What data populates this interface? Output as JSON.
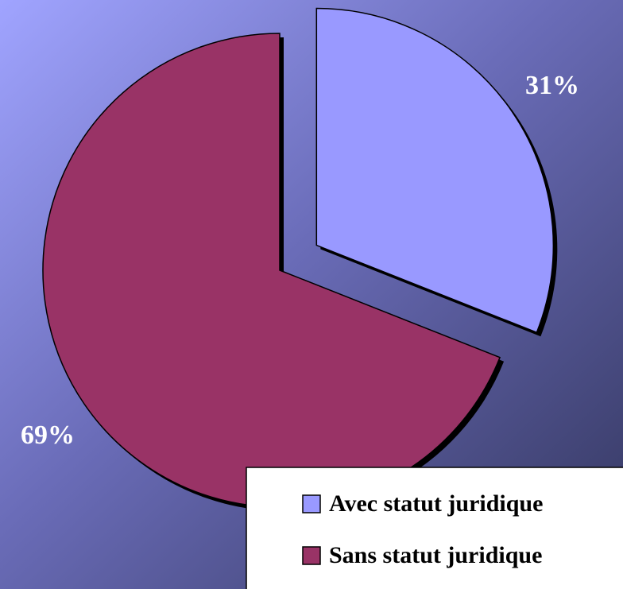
{
  "chart_data": {
    "type": "pie",
    "categories": [
      "Avec statut juridique",
      "Sans statut juridique"
    ],
    "values": [
      31,
      69
    ],
    "value_labels": [
      "31%",
      "69%"
    ],
    "colors": [
      "#9999ff",
      "#993366"
    ],
    "legend": "bottom-right"
  }
}
